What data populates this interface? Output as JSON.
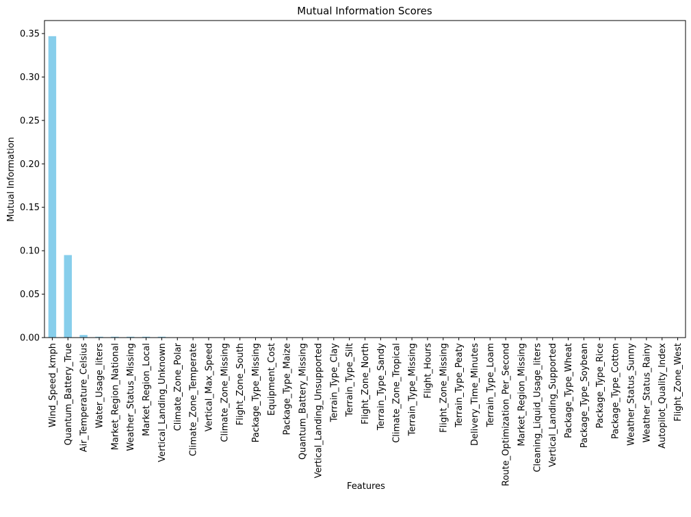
{
  "chart_data": {
    "type": "bar",
    "title": "Mutual Information Scores",
    "xlabel": "Features",
    "ylabel": "Mutual Information",
    "ylim": [
      0,
      0.365
    ],
    "yticks": [
      "0.00",
      "0.05",
      "0.10",
      "0.15",
      "0.20",
      "0.25",
      "0.30",
      "0.35"
    ],
    "bar_color": "#87ceeb",
    "grid": false,
    "categories": [
      "Wind_Speed_kmph",
      "Quantum_Battery_True",
      "Air_Temperature_Celsius",
      "Water_Usage_liters",
      "Market_Region_National",
      "Weather_Status_Missing",
      "Market_Region_Local",
      "Vertical_Landing_Unknown",
      "Climate_Zone_Polar",
      "Climate_Zone_Temperate",
      "Vertical_Max_Speed",
      "Climate_Zone_Missing",
      "Flight_Zone_South",
      "Package_Type_Missing",
      "Equipment_Cost",
      "Package_Type_Maize",
      "Quantum_Battery_Missing",
      "Vertical_Landing_Unsupported",
      "Terrain_Type_Clay",
      "Terrain_Type_Silt",
      "Flight_Zone_North",
      "Terrain_Type_Sandy",
      "Climate_Zone_Tropical",
      "Terrain_Type_Missing",
      "Flight_Hours",
      "Flight_Zone_Missing",
      "Terrain_Type_Peaty",
      "Delivery_Time_Minutes",
      "Terrain_Type_Loam",
      "Route_Optimization_Per_Second",
      "Market_Region_Missing",
      "Cleaning_Liquid_Usage_liters",
      "Vertical_Landing_Supported",
      "Package_Type_Wheat",
      "Package_Type_Soybean",
      "Package_Type_Rice",
      "Package_Type_Cotton",
      "Weather_Status_Sunny",
      "Weather_Status_Rainy",
      "Autopilot_Quality_Index",
      "Flight_Zone_West"
    ],
    "values": [
      0.347,
      0.095,
      0.003,
      0.001,
      0.001,
      0.001,
      0.001,
      0.001,
      0,
      0,
      0,
      0,
      0,
      0,
      0,
      0,
      0,
      0,
      0,
      0,
      0,
      0,
      0,
      0,
      0,
      0,
      0,
      0,
      0,
      0,
      0,
      0,
      0,
      0,
      0,
      0,
      0,
      0,
      0,
      0,
      0
    ]
  }
}
